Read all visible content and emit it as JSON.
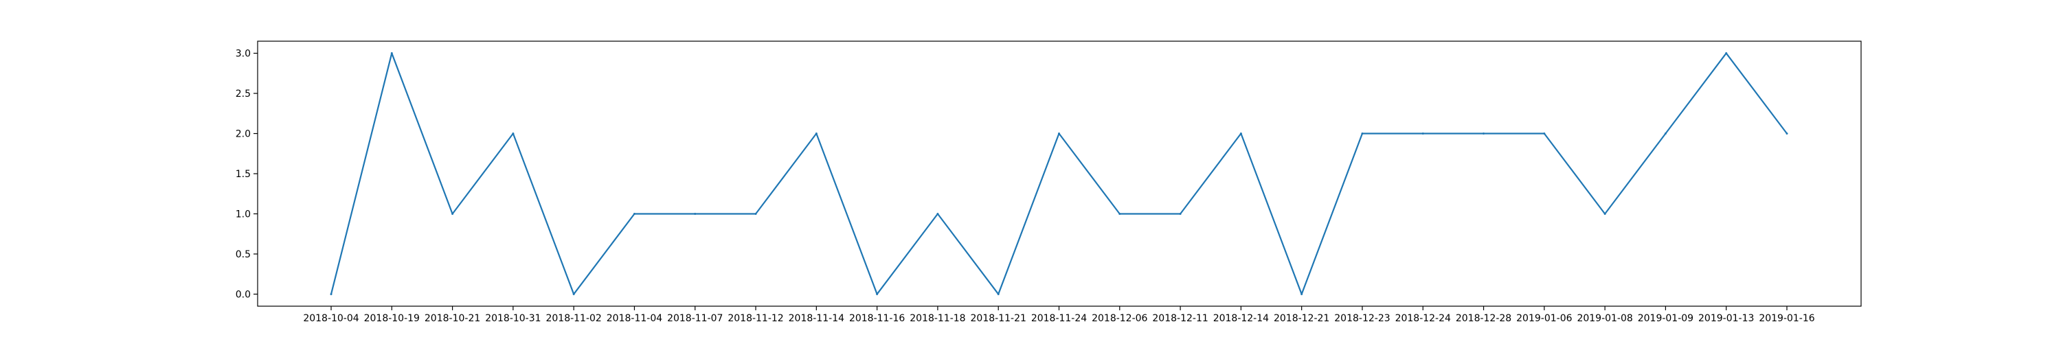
{
  "chart_data": {
    "type": "line",
    "title": "",
    "xlabel": "",
    "ylabel": "",
    "ylim": [
      -0.15,
      3.15
    ],
    "yticks": [
      "0.0",
      "0.5",
      "1.0",
      "1.5",
      "2.0",
      "2.5",
      "3.0"
    ],
    "grid": false,
    "legend": "none",
    "line_color": "#1f77b4",
    "categories": [
      "2018-10-04",
      "2018-10-19",
      "2018-10-21",
      "2018-10-31",
      "2018-11-02",
      "2018-11-04",
      "2018-11-07",
      "2018-11-12",
      "2018-11-14",
      "2018-11-16",
      "2018-11-18",
      "2018-11-21",
      "2018-11-24",
      "2018-12-06",
      "2018-12-11",
      "2018-12-14",
      "2018-12-21",
      "2018-12-23",
      "2018-12-24",
      "2018-12-28",
      "2019-01-06",
      "2019-01-08",
      "2019-01-09",
      "2019-01-13",
      "2019-01-16"
    ],
    "series": [
      {
        "values": [
          0,
          3,
          1,
          2,
          0,
          1,
          1,
          1,
          2,
          0,
          1,
          0,
          2,
          1,
          1,
          2,
          0,
          2,
          2,
          2,
          2,
          1,
          2,
          3,
          2
        ]
      }
    ]
  }
}
